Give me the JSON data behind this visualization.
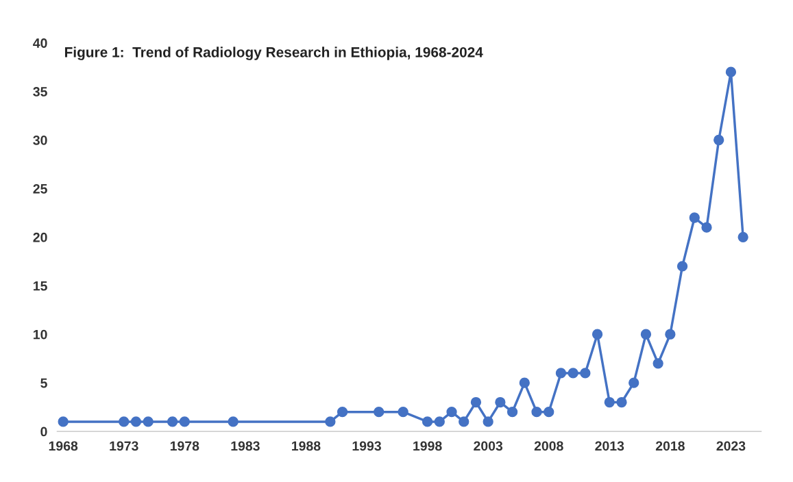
{
  "chart_data": {
    "type": "line",
    "title": "Figure 1:  Trend of Radiology Research in Ethiopia, 1968-2024",
    "x": [
      1968,
      1973,
      1974,
      1975,
      1977,
      1978,
      1982,
      1990,
      1991,
      1994,
      1996,
      1998,
      1999,
      2000,
      2001,
      2002,
      2003,
      2004,
      2005,
      2006,
      2007,
      2008,
      2009,
      2010,
      2011,
      2012,
      2013,
      2014,
      2015,
      2016,
      2017,
      2018,
      2019,
      2020,
      2021,
      2022,
      2023,
      2024
    ],
    "series": [
      {
        "color": "#4472c4",
        "values": [
          1,
          1,
          1,
          1,
          1,
          1,
          1,
          1,
          2,
          2,
          2,
          1,
          1,
          2,
          1,
          3,
          1,
          3,
          2,
          5,
          2,
          2,
          6,
          6,
          6,
          10,
          3,
          3,
          5,
          10,
          7,
          10,
          17,
          22,
          21,
          30,
          37,
          20
        ]
      }
    ],
    "xlim": [
      1967.5,
      2025.5
    ],
    "xticks": [
      1968,
      1973,
      1978,
      1983,
      1988,
      1993,
      1998,
      2003,
      2008,
      2013,
      2018,
      2023
    ],
    "ylim": [
      0,
      40
    ],
    "yticks": [
      0,
      5,
      10,
      15,
      20,
      25,
      30,
      35,
      40
    ],
    "grid": false,
    "legend": false,
    "marker": "circle",
    "line_style": "solid"
  }
}
